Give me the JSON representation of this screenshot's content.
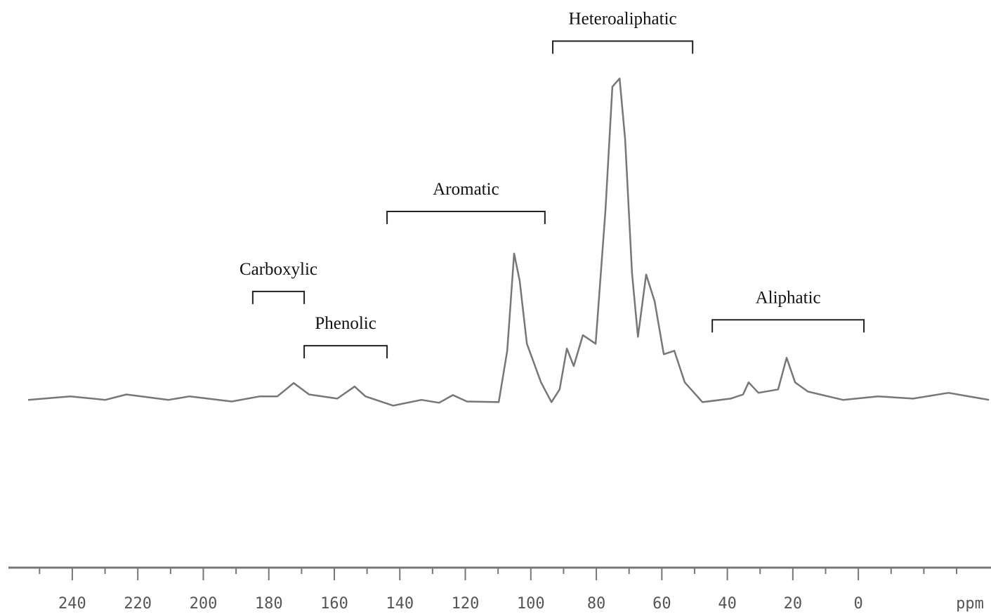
{
  "chart_data": {
    "type": "line",
    "x_label": "ppm",
    "xlim": [
      259.5,
      -40.5
    ],
    "ylim": [
      -53,
      125
    ],
    "xticks": [
      240,
      220,
      200,
      180,
      160,
      140,
      120,
      100,
      80,
      60,
      40,
      20,
      0
    ],
    "minor_xticks": [
      250,
      230,
      210,
      190,
      170,
      150,
      130,
      110,
      90,
      70,
      50,
      30,
      10,
      -10,
      -20,
      -30
    ],
    "color": "#777777",
    "x": [
      253.5,
      240.6,
      229.9,
      223.5,
      210.6,
      204.2,
      191.3,
      182.7,
      177.4,
      172.4,
      167.7,
      159.1,
      153.8,
      150.5,
      142.0,
      133.4,
      128.0,
      123.8,
      119.5,
      109.8,
      107.2,
      105.1,
      103.4,
      101.2,
      96.9,
      93.7,
      91.2,
      89.0,
      86.9,
      84.1,
      80.2,
      77.2,
      75.1,
      72.9,
      71.2,
      69.1,
      67.3,
      64.8,
      62.2,
      59.4,
      56.2,
      53.0,
      47.6,
      39.0,
      35.2,
      33.5,
      30.5,
      24.5,
      21.9,
      19.3,
      15.4,
      4.7,
      -6.0,
      -16.7,
      -27.5,
      -39.9
    ],
    "values": [
      -0.4,
      0.7,
      -0.4,
      1.3,
      -0.4,
      0.7,
      -0.9,
      0.7,
      0.7,
      4.9,
      1.3,
      0,
      3.8,
      0.7,
      -2.2,
      -0.4,
      -1.3,
      1.1,
      -0.9,
      -1.1,
      15,
      45.5,
      37,
      17.2,
      5.1,
      -1.1,
      2.9,
      15.7,
      10.2,
      19.9,
      17.2,
      59.2,
      97.8,
      100.4,
      81.2,
      39.3,
      19.4,
      38.9,
      30.5,
      13.9,
      15,
      5.1,
      -1.1,
      0,
      1.3,
      5.1,
      1.8,
      2.9,
      12.8,
      5.1,
      2.2,
      -0.4,
      0.7,
      0,
      1.8,
      -0.4
    ],
    "annotations": [
      {
        "text": "Carboxylic",
        "from": 184.9,
        "to": 169.2,
        "level": 33.6
      },
      {
        "text": "Phenolic",
        "from": 169.2,
        "to": 143.9,
        "level": 16.6
      },
      {
        "text": "Aromatic",
        "from": 143.9,
        "to": 95.7,
        "level": 58.7
      },
      {
        "text": "Heteroaliphatic",
        "from": 93.3,
        "to": 50.6,
        "level": 112.1
      },
      {
        "text": "Aliphatic",
        "from": 44.6,
        "to": -1.7,
        "level": 24.7
      }
    ]
  }
}
